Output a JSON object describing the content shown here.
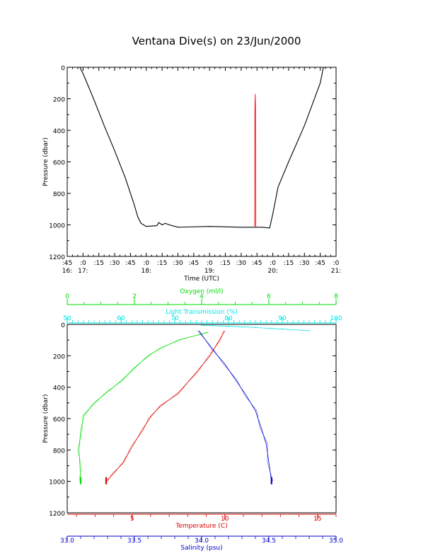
{
  "title": "Ventana Dive(s) on 23/Jun/2000",
  "chart_data": [
    {
      "type": "line",
      "name": "dive-profile",
      "xlabel": "Time (UTC)",
      "ylabel": "Pressure (dbar)",
      "x_unit": "minutes since 16:30 UTC",
      "xlim": [
        15,
        270
      ],
      "ylim": [
        1200,
        0
      ],
      "yticks": [
        0,
        200,
        400,
        600,
        800,
        1000,
        1200
      ],
      "xticks": [
        {
          "t": 15,
          "minute": ":45",
          "hour": "16:"
        },
        {
          "t": 30,
          "minute": ":0",
          "hour": "17:"
        },
        {
          "t": 45,
          "minute": ":15",
          "hour": ""
        },
        {
          "t": 60,
          "minute": ":30",
          "hour": ""
        },
        {
          "t": 75,
          "minute": ":45",
          "hour": ""
        },
        {
          "t": 90,
          "minute": ":0",
          "hour": "18:"
        },
        {
          "t": 105,
          "minute": ":15",
          "hour": ""
        },
        {
          "t": 120,
          "minute": ":30",
          "hour": ""
        },
        {
          "t": 135,
          "minute": ":45",
          "hour": ""
        },
        {
          "t": 150,
          "minute": ":0",
          "hour": "19:"
        },
        {
          "t": 165,
          "minute": ":15",
          "hour": ""
        },
        {
          "t": 180,
          "minute": ":30",
          "hour": ""
        },
        {
          "t": 195,
          "minute": ":45",
          "hour": ""
        },
        {
          "t": 210,
          "minute": ":0",
          "hour": "20:"
        },
        {
          "t": 225,
          "minute": ":15",
          "hour": ""
        },
        {
          "t": 240,
          "minute": ":30",
          "hour": ""
        },
        {
          "t": 255,
          "minute": ":45",
          "hour": ""
        },
        {
          "t": 270,
          "minute": ":0",
          "hour": "21:"
        }
      ],
      "series": [
        {
          "color": "#000000",
          "x": [
            27,
            30,
            40,
            50,
            60,
            70,
            78,
            82,
            85,
            90,
            100,
            102,
            105,
            108,
            112,
            120,
            150,
            180,
            200,
            207,
            210,
            215,
            225,
            240,
            255,
            258
          ],
          "y": [
            0,
            40,
            200,
            370,
            530,
            700,
            860,
            950,
            990,
            1010,
            1005,
            985,
            1000,
            990,
            1000,
            1015,
            1010,
            1015,
            1015,
            1020,
            930,
            760,
            600,
            370,
            100,
            0
          ]
        },
        {
          "color": "#ff0000",
          "x": [
            192.8,
            193,
            193.3,
            193.6,
            193.8
          ],
          "y": [
            1010,
            260,
            170,
            260,
            1010
          ]
        }
      ]
    },
    {
      "type": "line",
      "name": "profiles",
      "ylabel": "Pressure (dbar)",
      "ylim": [
        1200,
        0
      ],
      "yticks": [
        0,
        200,
        400,
        600,
        800,
        1000,
        1200
      ],
      "axes": [
        {
          "key": "oxygen",
          "label": "Oxygen (ml/l)",
          "color": "#00dd00",
          "position": "top",
          "range": [
            0,
            8
          ],
          "ticks": [
            0,
            2,
            4,
            6,
            8
          ]
        },
        {
          "key": "light",
          "label": "Light Transmission (%)",
          "color": "#00e5e5",
          "position": "top",
          "range": [
            50,
            100
          ],
          "ticks": [
            50,
            60,
            70,
            80,
            90,
            100
          ]
        },
        {
          "key": "temperature",
          "label": "Temperature (C)",
          "color": "#dd0000",
          "position": "bottom",
          "range": [
            1.5,
            16
          ],
          "ticks": [
            5,
            10,
            15
          ]
        },
        {
          "key": "salinity",
          "label": "Salinity (psu)",
          "color": "#0000cc",
          "position": "bottom",
          "range": [
            33.0,
            35.0
          ],
          "ticks": [
            "33.0",
            "33.5",
            "34.0",
            "34.5",
            "35.0"
          ]
        }
      ],
      "series": [
        {
          "axis": "oxygen",
          "color": "#00dd00",
          "x": [
            4.2,
            3.3,
            2.8,
            2.4,
            2.0,
            1.6,
            1.2,
            0.8,
            0.5,
            0.4,
            0.35,
            0.38,
            0.4
          ],
          "y": [
            50,
            100,
            150,
            200,
            280,
            360,
            430,
            500,
            580,
            680,
            800,
            900,
            1000
          ]
        },
        {
          "axis": "temperature",
          "color": "#dd0000",
          "x": [
            10.0,
            9.7,
            9.2,
            8.5,
            7.5,
            6.5,
            6.0,
            5.5,
            5.0,
            4.5,
            4.0,
            3.6
          ],
          "y": [
            40,
            100,
            200,
            300,
            440,
            520,
            590,
            680,
            780,
            880,
            950,
            1000
          ]
        },
        {
          "axis": "salinity",
          "color": "#0000cc",
          "x": [
            33.98,
            34.07,
            34.17,
            34.25,
            34.33,
            34.4,
            34.44,
            34.48,
            34.5,
            34.52
          ],
          "y": [
            40,
            150,
            250,
            350,
            450,
            550,
            650,
            760,
            880,
            1000
          ]
        },
        {
          "axis": "light",
          "color": "#00e5e5",
          "x": [
            75,
            77,
            80,
            85,
            90,
            95
          ],
          "y": [
            5,
            8,
            12,
            20,
            30,
            40
          ]
        }
      ]
    }
  ]
}
